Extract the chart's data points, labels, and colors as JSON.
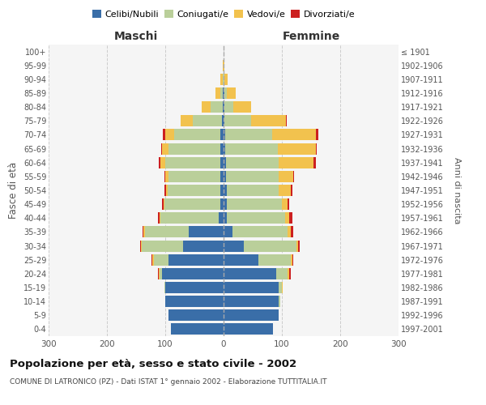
{
  "age_groups": [
    "0-4",
    "5-9",
    "10-14",
    "15-19",
    "20-24",
    "25-29",
    "30-34",
    "35-39",
    "40-44",
    "45-49",
    "50-54",
    "55-59",
    "60-64",
    "65-69",
    "70-74",
    "75-79",
    "80-84",
    "85-89",
    "90-94",
    "95-99",
    "100+"
  ],
  "birth_years": [
    "1997-2001",
    "1992-1996",
    "1987-1991",
    "1982-1986",
    "1977-1981",
    "1972-1976",
    "1967-1971",
    "1962-1966",
    "1957-1961",
    "1952-1956",
    "1947-1951",
    "1942-1946",
    "1937-1941",
    "1932-1936",
    "1927-1931",
    "1922-1926",
    "1917-1921",
    "1912-1916",
    "1907-1911",
    "1902-1906",
    "≤ 1901"
  ],
  "colors": {
    "celibi": "#3A6EA8",
    "coniugati": "#BACF9A",
    "vedovi": "#F2C24E",
    "divorziati": "#CC2020"
  },
  "maschi": {
    "celibi": [
      90,
      95,
      100,
      100,
      105,
      95,
      70,
      60,
      8,
      6,
      6,
      5,
      5,
      5,
      5,
      3,
      2,
      1,
      0,
      0,
      0
    ],
    "coniugati": [
      0,
      0,
      0,
      2,
      5,
      25,
      70,
      75,
      100,
      95,
      90,
      90,
      95,
      90,
      80,
      50,
      20,
      5,
      2,
      0,
      0
    ],
    "vedovi": [
      0,
      0,
      0,
      0,
      1,
      2,
      2,
      2,
      2,
      2,
      3,
      5,
      8,
      10,
      15,
      20,
      15,
      8,
      3,
      1,
      0
    ],
    "divorziati": [
      0,
      0,
      0,
      0,
      1,
      1,
      1,
      2,
      3,
      3,
      3,
      2,
      3,
      2,
      4,
      1,
      0,
      0,
      0,
      0,
      0
    ]
  },
  "femmine": {
    "celibi": [
      85,
      95,
      95,
      95,
      90,
      60,
      35,
      15,
      5,
      5,
      5,
      4,
      4,
      3,
      3,
      2,
      2,
      1,
      0,
      0,
      0
    ],
    "coniugati": [
      0,
      0,
      2,
      5,
      20,
      55,
      90,
      95,
      100,
      95,
      90,
      90,
      90,
      90,
      80,
      45,
      15,
      5,
      2,
      0,
      0
    ],
    "vedovi": [
      0,
      0,
      0,
      2,
      3,
      3,
      3,
      5,
      8,
      10,
      20,
      25,
      60,
      65,
      75,
      60,
      30,
      15,
      5,
      2,
      0
    ],
    "divorziati": [
      0,
      0,
      0,
      0,
      2,
      2,
      2,
      5,
      5,
      3,
      3,
      2,
      5,
      2,
      5,
      1,
      0,
      0,
      0,
      0,
      0
    ]
  },
  "xlim": 300,
  "title": "Popolazione per età, sesso e stato civile - 2002",
  "subtitle": "COMUNE DI LATRONICO (PZ) - Dati ISTAT 1° gennaio 2002 - Elaborazione TUTTITALIA.IT",
  "ylabel": "Fasce di età",
  "ylabel2": "Anni di nascita",
  "background_color": "#f5f5f5",
  "grid_color": "#cccccc"
}
